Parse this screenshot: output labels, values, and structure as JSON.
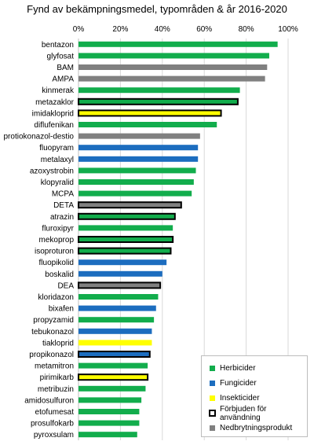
{
  "chart_data": {
    "type": "bar",
    "orientation": "horizontal",
    "title": "Fynd av bekämpningsmedel, typområden & år 2016-2020",
    "xlim": [
      0,
      100
    ],
    "x_ticks": [
      "0%",
      "20%",
      "40%",
      "60%",
      "80%",
      "100%"
    ],
    "x_tick_values": [
      0,
      20,
      40,
      60,
      80,
      100
    ],
    "grid": true,
    "legend_position": "bottom-right",
    "colors": {
      "herbicid": "#12ad4c",
      "fungicid": "#1c6dbf",
      "insekticid": "#ffff00",
      "nedbrytning": "#808080",
      "border": "#000000"
    },
    "legend": [
      {
        "label": "Herbicider",
        "color": "#12ad4c"
      },
      {
        "label": "Fungicider",
        "color": "#1c6dbf"
      },
      {
        "label": "Insekticider",
        "color": "#ffff00"
      },
      {
        "label": "Förbjuden för användning",
        "color": "#ffffff",
        "boxed": true
      },
      {
        "label": "Nedbrytningsprodukt",
        "color": "#808080"
      }
    ],
    "bars": [
      {
        "label": "bentazon",
        "value": 95,
        "type": "herbicid",
        "banned": false
      },
      {
        "label": "glyfosat",
        "value": 91,
        "type": "herbicid",
        "banned": false
      },
      {
        "label": "BAM",
        "value": 90,
        "type": "nedbrytning",
        "banned": false
      },
      {
        "label": "AMPA",
        "value": 89,
        "type": "nedbrytning",
        "banned": false
      },
      {
        "label": "kinmerak",
        "value": 77,
        "type": "herbicid",
        "banned": false
      },
      {
        "label": "metazaklor",
        "value": 76,
        "type": "herbicid",
        "banned": true
      },
      {
        "label": "imidakloprid",
        "value": 68,
        "type": "insekticid",
        "banned": true
      },
      {
        "label": "diflufenikan",
        "value": 66,
        "type": "herbicid",
        "banned": false
      },
      {
        "label": "protiokonazol-destio",
        "value": 58,
        "type": "nedbrytning",
        "banned": false
      },
      {
        "label": "fluopyram",
        "value": 57,
        "type": "fungicid",
        "banned": false
      },
      {
        "label": "metalaxyl",
        "value": 57,
        "type": "fungicid",
        "banned": false
      },
      {
        "label": "azoxystrobin",
        "value": 56,
        "type": "herbicid",
        "banned": false
      },
      {
        "label": "klopyralid",
        "value": 55,
        "type": "herbicid",
        "banned": false
      },
      {
        "label": "MCPA",
        "value": 54,
        "type": "herbicid",
        "banned": false
      },
      {
        "label": "DETA",
        "value": 49,
        "type": "nedbrytning",
        "banned": true
      },
      {
        "label": "atrazin",
        "value": 46,
        "type": "herbicid",
        "banned": true
      },
      {
        "label": "fluroxipyr",
        "value": 45,
        "type": "herbicid",
        "banned": false
      },
      {
        "label": "mekoprop",
        "value": 45,
        "type": "herbicid",
        "banned": true
      },
      {
        "label": "isoproturon",
        "value": 44,
        "type": "herbicid",
        "banned": true
      },
      {
        "label": "fluopikolid",
        "value": 42,
        "type": "fungicid",
        "banned": false
      },
      {
        "label": "boskalid",
        "value": 40,
        "type": "fungicid",
        "banned": false
      },
      {
        "label": "DEA",
        "value": 39,
        "type": "nedbrytning",
        "banned": true
      },
      {
        "label": "kloridazon",
        "value": 38,
        "type": "herbicid",
        "banned": false
      },
      {
        "label": "bixafen",
        "value": 37,
        "type": "fungicid",
        "banned": false
      },
      {
        "label": "propyzamid",
        "value": 36,
        "type": "herbicid",
        "banned": false
      },
      {
        "label": "tebukonazol",
        "value": 35,
        "type": "fungicid",
        "banned": false
      },
      {
        "label": "tiakloprid",
        "value": 35,
        "type": "insekticid",
        "banned": false
      },
      {
        "label": "propikonazol",
        "value": 34,
        "type": "fungicid",
        "banned": true
      },
      {
        "label": "metamitron",
        "value": 33,
        "type": "herbicid",
        "banned": false
      },
      {
        "label": "pirimikarb",
        "value": 33,
        "type": "insekticid",
        "banned": true
      },
      {
        "label": "metribuzin",
        "value": 32,
        "type": "herbicid",
        "banned": false
      },
      {
        "label": "amidosulfuron",
        "value": 30,
        "type": "herbicid",
        "banned": false
      },
      {
        "label": "etofumesat",
        "value": 29,
        "type": "herbicid",
        "banned": false
      },
      {
        "label": "prosulfokarb",
        "value": 29,
        "type": "herbicid",
        "banned": false
      },
      {
        "label": "pyroxsulam",
        "value": 28,
        "type": "herbicid",
        "banned": false
      }
    ]
  }
}
